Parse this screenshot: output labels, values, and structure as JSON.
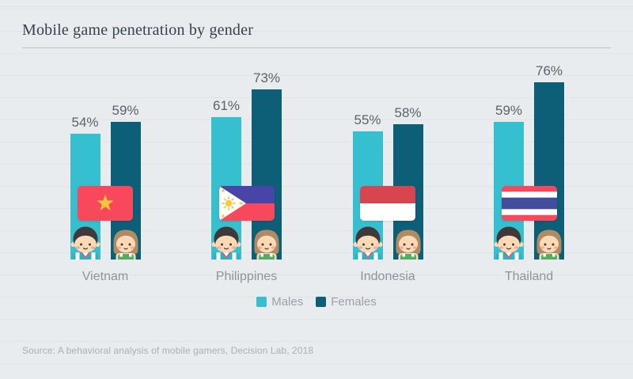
{
  "title": "Mobile game penetration by gender",
  "source": "Source: A behavioral analysis of mobile gamers, Decision Lab, 2018",
  "legend": {
    "males_label": "Males",
    "females_label": "Females"
  },
  "colors": {
    "background": "#e9ecef",
    "males_bar": "#36bfce",
    "females_bar": "#0d5e77",
    "value_label": "#5a626b",
    "category_label": "#8b939c",
    "legend_text": "#98a0a9",
    "source_text": "#a8afb6",
    "title_text": "#36414e",
    "divider": "#b9c0c7"
  },
  "chart_data": {
    "type": "bar",
    "title": "Mobile game penetration by gender",
    "categories": [
      "Vietnam",
      "Philippines",
      "Indonesia",
      "Thailand"
    ],
    "series": [
      {
        "name": "Males",
        "color": "#36bfce",
        "values": [
          54,
          61,
          55,
          59
        ]
      },
      {
        "name": "Females",
        "color": "#0d5e77",
        "values": [
          59,
          73,
          58,
          76
        ]
      }
    ],
    "value_suffix": "%",
    "ylim": [
      0,
      100
    ],
    "legend_position": "bottom",
    "grid": "faint horizontal pinstripes",
    "flags": [
      "vietnam",
      "philippines",
      "indonesia",
      "thailand"
    ],
    "flag_colors": {
      "vietnam": {
        "red": "#f8495c",
        "star": "#fcc53d"
      },
      "philippines": {
        "blue": "#4745a8",
        "red": "#f8485c",
        "white": "#ffffff",
        "yellow": "#fdc540"
      },
      "indonesia": {
        "red": "#d9454f",
        "white": "#ffffff"
      },
      "thailand": {
        "red": "#f8485c",
        "white": "#ffffff",
        "blue": "#424d9c"
      }
    },
    "characters": {
      "boy": {
        "hair": "#3e3a3b",
        "skin": "#fed9b5",
        "cheek": "#f7a9a1",
        "shirt": "#2cb3c0",
        "strap": "#ffffff",
        "collar": "#e2556a"
      },
      "girl": {
        "hair": "#b08c64",
        "skin": "#fed9b5",
        "cheek": "#f7a9a1",
        "top": "#53ae62",
        "strap": "#ffffff"
      }
    }
  }
}
